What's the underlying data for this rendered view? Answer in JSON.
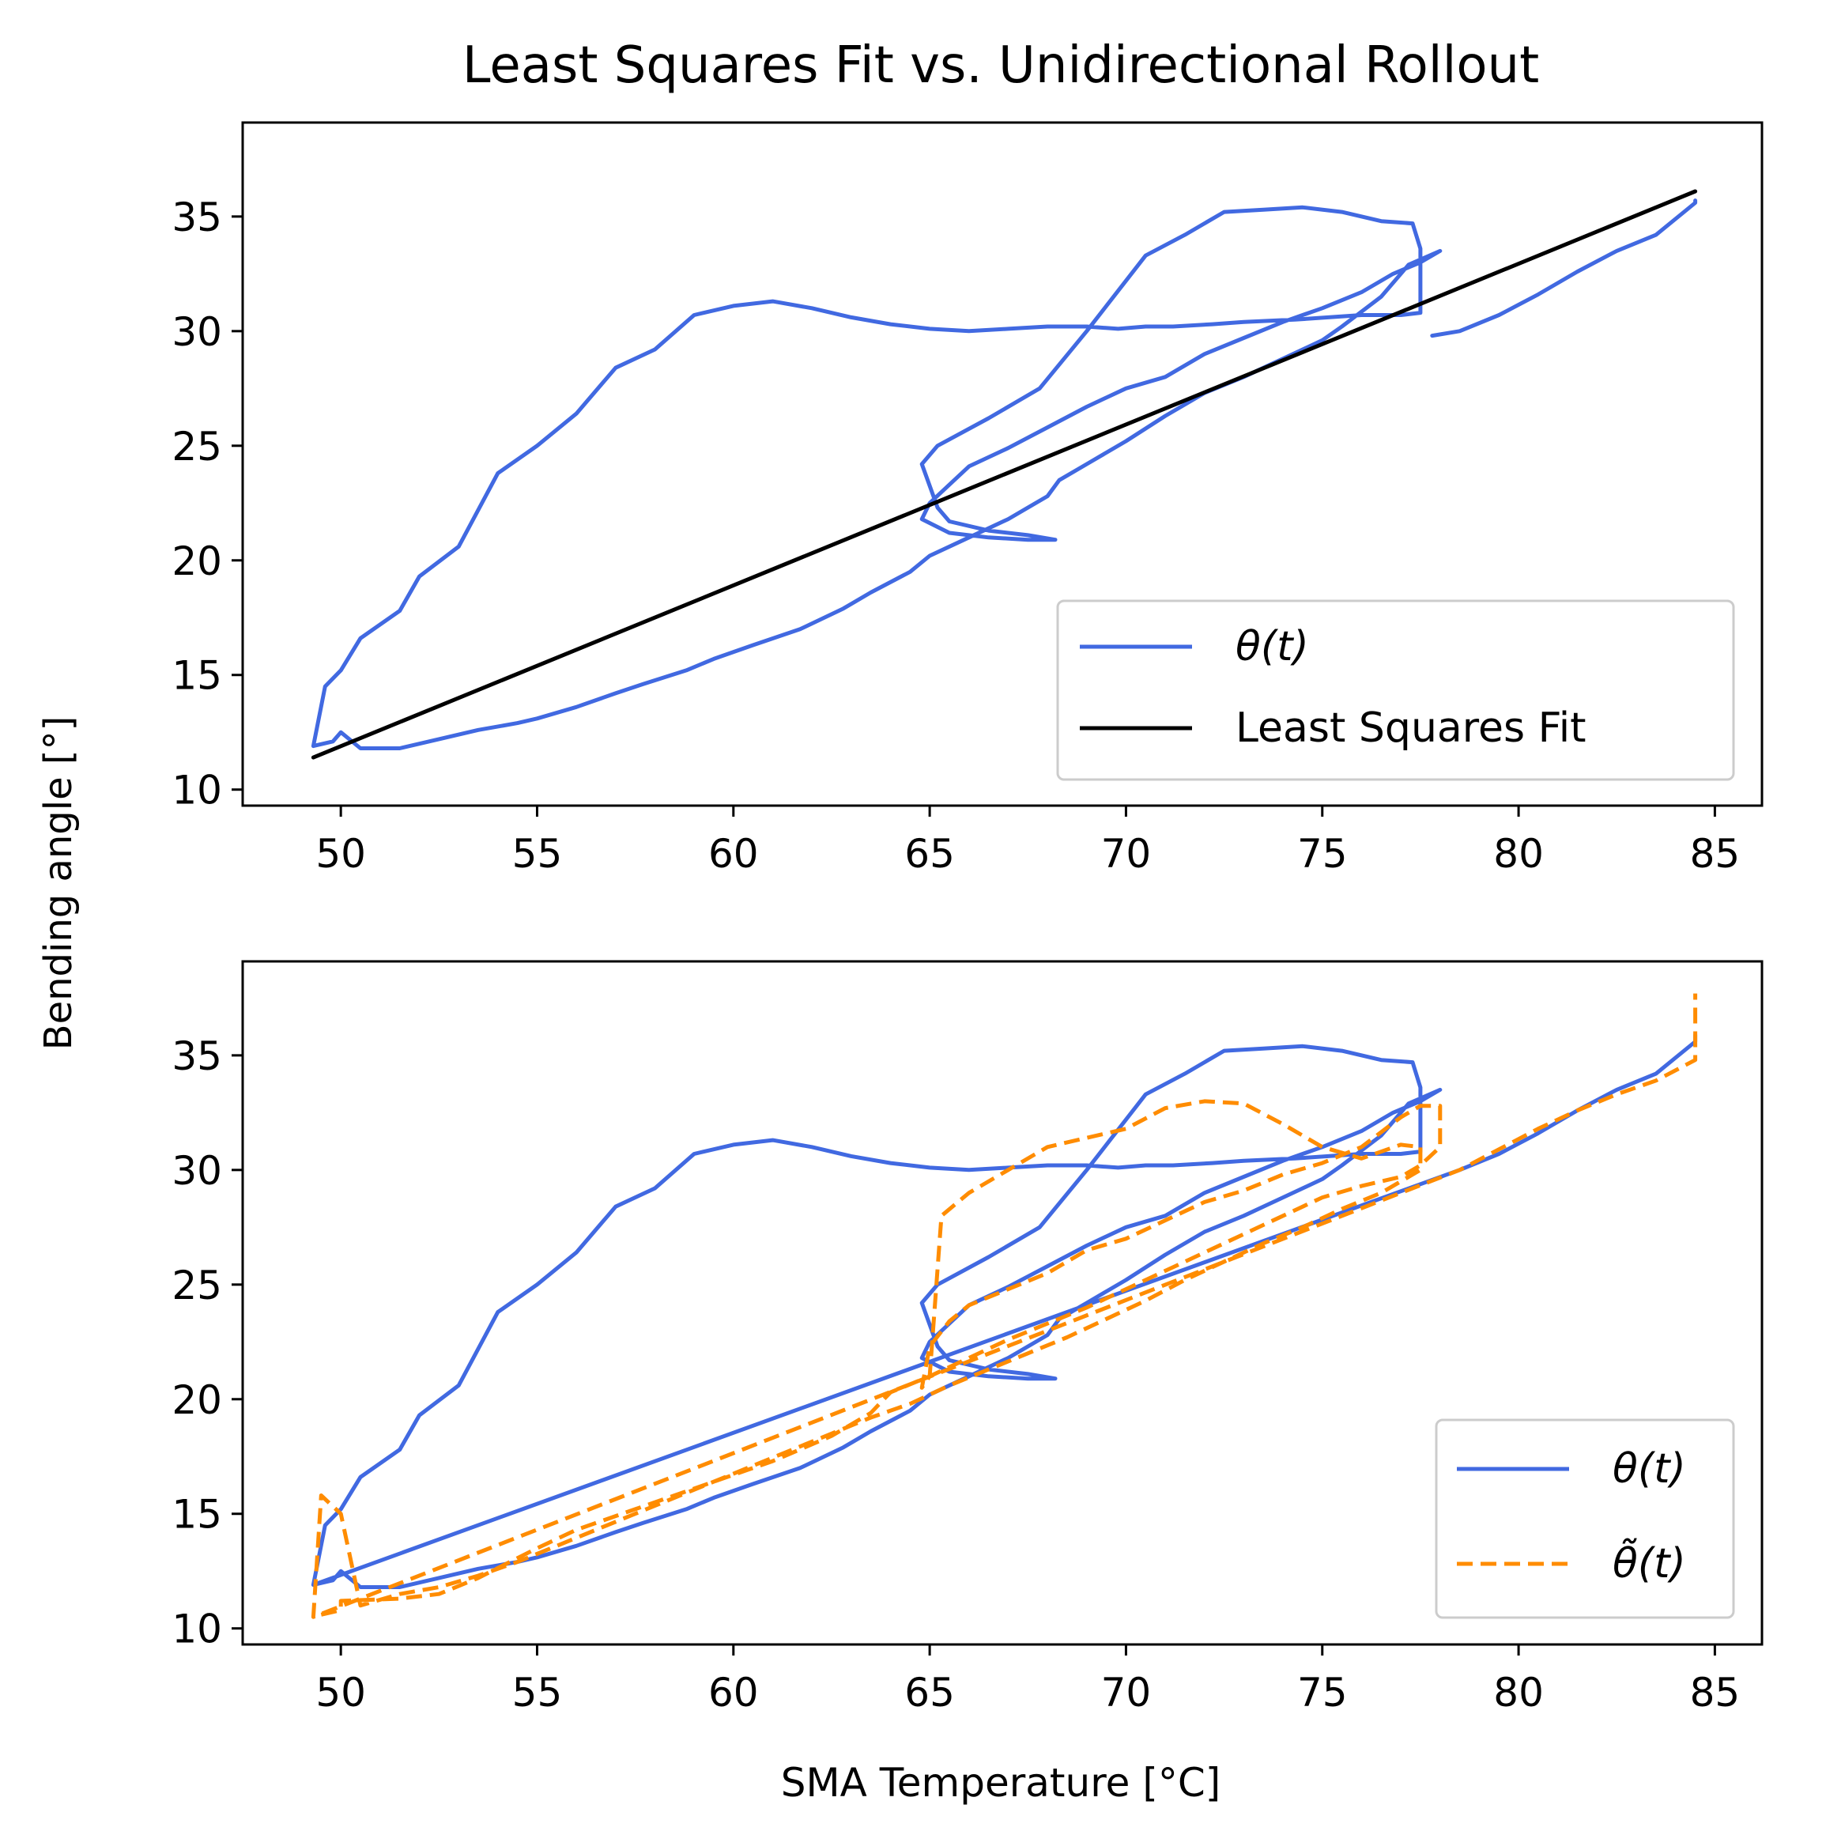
{
  "figure": {
    "title": "Least Squares Fit vs. Unidirectional Rollout",
    "shared_ylabel": "Bending angle [°]",
    "xlabel": "SMA Temperature [°C]"
  },
  "colors": {
    "theta": "#4169e1",
    "fit": "#000000",
    "rollout": "#ff8c00"
  },
  "chart_data": [
    {
      "type": "line",
      "title": "Least Squares Fit vs. Unidirectional Rollout",
      "xlim": [
        47.5,
        86.2
      ],
      "ylim": [
        9.3,
        39.1
      ],
      "xticks": [
        50,
        55,
        60,
        65,
        70,
        75,
        80,
        85
      ],
      "yticks": [
        10,
        15,
        20,
        25,
        30,
        35
      ],
      "grid": false,
      "legend_position": "lower-right",
      "series": [
        {
          "name": "θ(t)",
          "color": "#4169e1",
          "style": "solid",
          "x": [
            49.3,
            49.8,
            50.0,
            50.5,
            51.0,
            51.5,
            51.5,
            52.5,
            53.5,
            54.5,
            55.0,
            56.0,
            57.0,
            57.7,
            58.8,
            59.5,
            60.5,
            61.7,
            62.8,
            63.5,
            64.5,
            65.0,
            66.0,
            67.0,
            68.0,
            68.3,
            69.0,
            70.0,
            71.0,
            72.0,
            73.0,
            74.0,
            75.0,
            75.5,
            76.5,
            77.2,
            78.0,
            77.5,
            76.8,
            76.0,
            75.0,
            74.0,
            73.0,
            72.0,
            71.0,
            70.0,
            69.0,
            68.0,
            67.0,
            66.0,
            65.5,
            65.0,
            64.8,
            65.5,
            66.5,
            67.5,
            68.2,
            67.5,
            66.5,
            65.5,
            65.2,
            64.8,
            65.2,
            66.5,
            67.8,
            69.0,
            70.5,
            71.5,
            72.5,
            73.5,
            74.5,
            75.5,
            76.5,
            77.3,
            77.5,
            77.5,
            77.0,
            76.0,
            74.3,
            73.0,
            72.2,
            71.2,
            70.5,
            69.8,
            69.0,
            68.0,
            67.0,
            66.0,
            65.0,
            64.0,
            63.0,
            62.0,
            61.0,
            60.0,
            59.0,
            58.0,
            57.0,
            56.0,
            55.0,
            54.0,
            53.0,
            52.0,
            51.5,
            50.5,
            50.0,
            49.6,
            49.3
          ],
          "y": [
            11.9,
            12.1,
            12.5,
            11.8,
            11.8,
            11.8,
            11.8,
            12.2,
            12.6,
            12.9,
            13.1,
            13.6,
            14.2,
            14.6,
            15.2,
            15.7,
            16.3,
            17.0,
            17.9,
            18.6,
            19.5,
            20.2,
            21.0,
            21.8,
            22.8,
            23.5,
            24.2,
            25.2,
            26.3,
            27.3,
            28.0,
            28.8,
            29.6,
            30.2,
            31.5,
            32.9,
            33.5,
            33.0,
            32.5,
            31.7,
            31.0,
            30.4,
            29.7,
            29.0,
            28.0,
            27.5,
            26.7,
            25.8,
            24.9,
            24.1,
            23.3,
            22.5,
            21.8,
            21.2,
            21.0,
            20.9,
            20.9,
            21.1,
            21.3,
            21.7,
            22.3,
            24.2,
            25.0,
            26.2,
            27.5,
            30.0,
            33.3,
            34.2,
            35.2,
            35.3,
            35.4,
            35.2,
            34.8,
            34.7,
            33.6,
            30.8,
            30.7,
            30.7,
            30.5,
            30.4,
            30.3,
            30.2,
            30.2,
            30.1,
            30.2,
            30.2,
            30.1,
            30.0,
            30.1,
            30.3,
            30.6,
            31.0,
            31.3,
            31.1,
            30.7,
            29.2,
            28.4,
            26.4,
            25.0,
            23.8,
            20.6,
            19.3,
            17.8,
            16.6,
            15.2,
            14.5,
            11.9
          ]
        },
        {
          "name": "Least Squares Fit",
          "color": "#000000",
          "style": "solid",
          "x": [
            49.3,
            84.5
          ],
          "y": [
            11.4,
            36.1
          ]
        },
        {
          "name": "",
          "color": "#4169e1",
          "style": "solid",
          "x": [
            77.8,
            78.5,
            79.5,
            80.5,
            81.5,
            82.5,
            83.5,
            84.5,
            84.5
          ],
          "y": [
            29.8,
            30.0,
            30.7,
            31.6,
            32.6,
            33.5,
            34.2,
            35.6,
            35.7
          ]
        }
      ]
    },
    {
      "type": "line",
      "xlim": [
        47.5,
        86.2
      ],
      "ylim": [
        9.3,
        39.1
      ],
      "xticks": [
        50,
        55,
        60,
        65,
        70,
        75,
        80,
        85
      ],
      "yticks": [
        10,
        15,
        20,
        25,
        30,
        35
      ],
      "xlabel": "SMA Temperature [°C]",
      "grid": false,
      "legend_position": "lower-right",
      "series": [
        {
          "name": "θ(t)",
          "color": "#4169e1",
          "style": "solid",
          "x": [
            49.3,
            49.8,
            50.0,
            50.5,
            51.0,
            51.5,
            51.5,
            52.5,
            53.5,
            54.5,
            55.0,
            56.0,
            57.0,
            57.7,
            58.8,
            59.5,
            60.5,
            61.7,
            62.8,
            63.5,
            64.5,
            65.0,
            66.0,
            67.0,
            68.0,
            68.3,
            69.0,
            70.0,
            71.0,
            72.0,
            73.0,
            74.0,
            75.0,
            75.5,
            76.5,
            77.2,
            78.0,
            77.5,
            76.8,
            76.0,
            75.0,
            74.0,
            73.0,
            72.0,
            71.0,
            70.0,
            69.0,
            68.0,
            67.0,
            66.0,
            65.5,
            65.0,
            64.8,
            65.5,
            66.5,
            67.5,
            68.2,
            67.5,
            66.5,
            65.5,
            65.2,
            64.8,
            65.2,
            66.5,
            67.8,
            69.0,
            70.5,
            71.5,
            72.5,
            73.5,
            74.5,
            75.5,
            76.5,
            77.3,
            77.5,
            77.5,
            77.0,
            76.0,
            74.3,
            73.0,
            72.2,
            71.2,
            70.5,
            69.8,
            69.0,
            68.0,
            67.0,
            66.0,
            65.0,
            64.0,
            63.0,
            62.0,
            61.0,
            60.0,
            59.0,
            58.0,
            57.0,
            56.0,
            55.0,
            54.0,
            53.0,
            52.0,
            51.5,
            50.5,
            50.0,
            49.6,
            49.3,
            49.3,
            78.5,
            79.5,
            80.5,
            81.5,
            82.5,
            83.5,
            84.5,
            84.5
          ],
          "y": [
            11.9,
            12.1,
            12.5,
            11.8,
            11.8,
            11.8,
            11.8,
            12.2,
            12.6,
            12.9,
            13.1,
            13.6,
            14.2,
            14.6,
            15.2,
            15.7,
            16.3,
            17.0,
            17.9,
            18.6,
            19.5,
            20.2,
            21.0,
            21.8,
            22.8,
            23.5,
            24.2,
            25.2,
            26.3,
            27.3,
            28.0,
            28.8,
            29.6,
            30.2,
            31.5,
            32.9,
            33.5,
            33.0,
            32.5,
            31.7,
            31.0,
            30.4,
            29.7,
            29.0,
            28.0,
            27.5,
            26.7,
            25.8,
            24.9,
            24.1,
            23.3,
            22.5,
            21.8,
            21.2,
            21.0,
            20.9,
            20.9,
            21.1,
            21.3,
            21.7,
            22.3,
            24.2,
            25.0,
            26.2,
            27.5,
            30.0,
            33.3,
            34.2,
            35.2,
            35.3,
            35.4,
            35.2,
            34.8,
            34.7,
            33.6,
            30.8,
            30.7,
            30.7,
            30.5,
            30.4,
            30.3,
            30.2,
            30.2,
            30.1,
            30.2,
            30.2,
            30.1,
            30.0,
            30.1,
            30.3,
            30.6,
            31.0,
            31.3,
            31.1,
            30.7,
            29.2,
            28.4,
            26.4,
            25.0,
            23.8,
            20.6,
            19.3,
            17.8,
            16.6,
            15.2,
            14.5,
            11.9,
            11.9,
            30.0,
            30.7,
            31.6,
            32.6,
            33.5,
            34.2,
            35.6,
            35.9
          ]
        },
        {
          "name": "θ̃(t)",
          "color": "#ff8c00",
          "style": "dashed",
          "x": [
            49.5,
            50.0,
            50.0,
            51.5,
            52.5,
            53.5,
            55.0,
            56.0,
            57.5,
            58.5,
            59.5,
            61.0,
            62.5,
            63.5,
            64.0,
            65.0,
            66.0,
            67.0,
            68.0,
            69.0,
            70.0,
            71.0,
            72.0,
            73.0,
            74.0,
            75.0,
            76.0,
            77.0,
            77.5,
            78.0,
            78.0,
            77.5,
            77.0,
            76.0,
            75.0,
            74.0,
            73.0,
            72.0,
            71.0,
            70.0,
            69.0,
            68.0,
            67.0,
            66.0,
            65.5,
            65.0,
            64.8,
            65.0,
            65.3,
            66.0,
            67.0,
            68.0,
            69.0,
            70.0,
            71.0,
            72.0,
            73.0,
            74.0,
            75.0,
            76.0,
            77.0,
            77.5,
            77.5,
            76.5,
            75.5,
            74.5,
            73.5,
            72.5,
            71.5,
            70.5,
            69.5,
            68.5,
            67.5,
            66.5,
            65.5,
            64.5,
            63.5,
            62.5,
            61.5,
            60.5,
            59.5,
            58.5,
            57.5,
            56.5,
            55.5,
            54.5,
            53.5,
            52.5,
            51.5,
            50.5,
            50.0,
            49.5,
            49.3,
            78.5,
            79.5,
            80.5,
            81.5,
            82.5,
            83.5,
            84.5,
            84.5
          ],
          "y": [
            10.6,
            10.8,
            11.2,
            11.3,
            11.5,
            12.2,
            13.5,
            14.3,
            15.2,
            15.8,
            16.4,
            17.3,
            18.4,
            19.4,
            20.3,
            21.0,
            21.8,
            22.6,
            23.3,
            24.0,
            24.8,
            25.6,
            26.4,
            27.2,
            28.0,
            28.8,
            29.3,
            29.7,
            30.2,
            31.0,
            32.8,
            32.8,
            32.3,
            31.0,
            30.3,
            29.8,
            29.1,
            28.6,
            27.8,
            27.0,
            26.5,
            25.5,
            24.8,
            24.1,
            23.4,
            22.3,
            20.5,
            21.0,
            28.0,
            29.0,
            30.0,
            31.0,
            31.4,
            31.8,
            32.7,
            33.0,
            32.9,
            32.0,
            31.0,
            30.5,
            31.1,
            31.0,
            30.0,
            29.0,
            28.3,
            27.5,
            26.8,
            26.0,
            25.2,
            24.3,
            23.5,
            22.7,
            22.0,
            21.3,
            20.6,
            19.8,
            19.2,
            18.5,
            17.8,
            17.1,
            16.4,
            15.7,
            15.0,
            14.3,
            13.6,
            12.9,
            12.3,
            11.8,
            11.5,
            11.0,
            15.0,
            15.8,
            10.5,
            30.0,
            30.9,
            31.8,
            32.6,
            33.3,
            33.9,
            34.8,
            37.7
          ]
        }
      ]
    }
  ]
}
